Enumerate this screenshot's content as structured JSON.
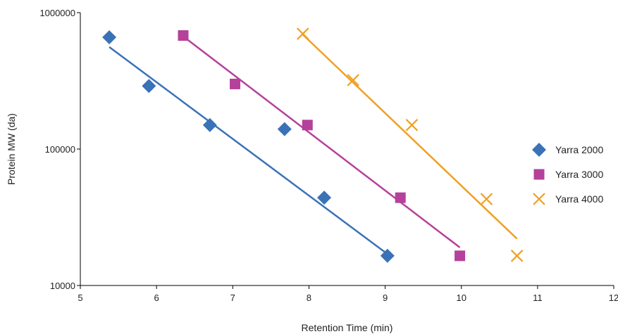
{
  "chart_data": {
    "type": "scatter",
    "title": "",
    "xlabel": "Retention Time (min)",
    "ylabel": "Protein MW (da)",
    "xlim": [
      5,
      12
    ],
    "ylim": [
      10000,
      1000000
    ],
    "yscale": "log",
    "x_ticks": [
      5,
      6,
      7,
      8,
      9,
      10,
      11,
      12
    ],
    "y_ticks": [
      10000,
      100000,
      1000000
    ],
    "x_tick_labels": [
      "5",
      "6",
      "7",
      "8",
      "9",
      "10",
      "11",
      "12"
    ],
    "y_tick_labels": [
      "10000",
      "100000",
      "1000000"
    ],
    "grid": false,
    "legend_position": "right",
    "series": [
      {
        "name": "Yarra 2000",
        "color": "#3a72b8",
        "marker": "diamond",
        "x": [
          5.38,
          5.9,
          6.7,
          7.68,
          8.2,
          9.03
        ],
        "y": [
          660000,
          290000,
          150000,
          140000,
          44000,
          16500
        ],
        "trendline": {
          "x": [
            5.38,
            9.03
          ],
          "y": [
            560000,
            17000
          ]
        }
      },
      {
        "name": "Yarra 3000",
        "color": "#b5419a",
        "marker": "square",
        "x": [
          6.35,
          7.03,
          7.98,
          9.2,
          9.98
        ],
        "y": [
          680000,
          300000,
          150000,
          44000,
          16500
        ],
        "trendline": {
          "x": [
            6.35,
            9.98
          ],
          "y": [
            670000,
            19000
          ]
        }
      },
      {
        "name": "Yarra 4000",
        "color": "#f0a023",
        "marker": "x",
        "x": [
          7.92,
          8.58,
          9.35,
          10.33,
          10.73
        ],
        "y": [
          700000,
          320000,
          150000,
          43000,
          16500
        ],
        "trendline": {
          "x": [
            7.92,
            10.73
          ],
          "y": [
            690000,
            22000
          ]
        }
      }
    ]
  }
}
